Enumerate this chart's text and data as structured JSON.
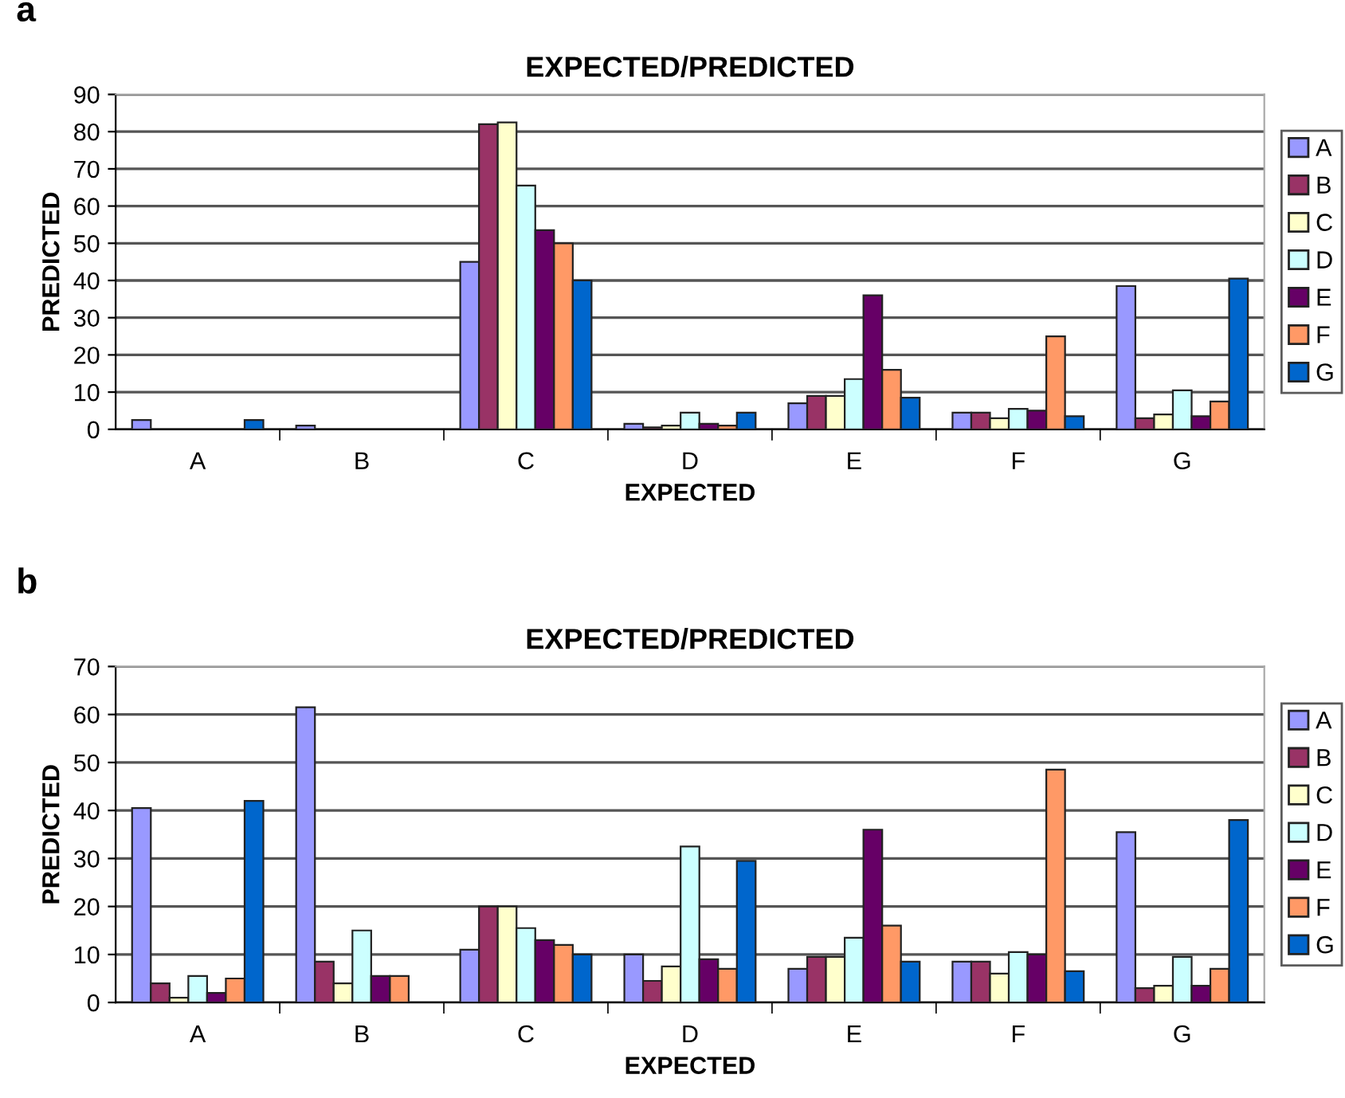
{
  "chart_data": [
    {
      "type": "bar",
      "title": "EXPECTED/PREDICTED",
      "xlabel": "EXPECTED",
      "ylabel": "PREDICTED",
      "annotations": [
        "a"
      ],
      "categories": [
        "A",
        "B",
        "C",
        "D",
        "E",
        "F",
        "G"
      ],
      "ylim": [
        0,
        90
      ],
      "yticks": [
        0,
        10,
        20,
        30,
        40,
        50,
        60,
        70,
        80,
        90
      ],
      "grid": "y",
      "legend": "right",
      "series": [
        {
          "name": "A",
          "color": "#9999ff",
          "values": [
            2.5,
            1,
            45,
            1.5,
            7,
            4.5,
            38.5
          ]
        },
        {
          "name": "B",
          "color": "#993366",
          "values": [
            null,
            null,
            82,
            0.5,
            9,
            4.5,
            3
          ]
        },
        {
          "name": "C",
          "color": "#ffffcc",
          "values": [
            null,
            null,
            82.5,
            1,
            9,
            3,
            4
          ]
        },
        {
          "name": "D",
          "color": "#ccffff",
          "values": [
            null,
            null,
            65.5,
            4.5,
            13.5,
            5.5,
            10.5
          ]
        },
        {
          "name": "E",
          "color": "#660066",
          "values": [
            null,
            null,
            53.5,
            1.5,
            36,
            5,
            3.5
          ]
        },
        {
          "name": "F",
          "color": "#ff9966",
          "values": [
            null,
            null,
            50,
            1,
            16,
            25,
            7.5
          ]
        },
        {
          "name": "G",
          "color": "#0066cc",
          "values": [
            2.5,
            null,
            40,
            4.5,
            8.5,
            3.5,
            40.5
          ]
        }
      ]
    },
    {
      "type": "bar",
      "title": "EXPECTED/PREDICTED",
      "xlabel": "EXPECTED",
      "ylabel": "PREDICTED",
      "annotations": [
        "b"
      ],
      "categories": [
        "A",
        "B",
        "C",
        "D",
        "E",
        "F",
        "G"
      ],
      "ylim": [
        0,
        70
      ],
      "yticks": [
        0,
        10,
        20,
        30,
        40,
        50,
        60,
        70
      ],
      "grid": "y",
      "legend": "right",
      "series": [
        {
          "name": "A",
          "color": "#9999ff",
          "values": [
            40.5,
            61.5,
            11,
            10,
            7,
            8.5,
            35.5
          ]
        },
        {
          "name": "B",
          "color": "#993366",
          "values": [
            4,
            8.5,
            20,
            4.5,
            9.5,
            8.5,
            3
          ]
        },
        {
          "name": "C",
          "color": "#ffffcc",
          "values": [
            1,
            4,
            20,
            7.5,
            9.5,
            6,
            3.5
          ]
        },
        {
          "name": "D",
          "color": "#ccffff",
          "values": [
            5.5,
            15,
            15.5,
            32.5,
            13.5,
            10.5,
            9.5
          ]
        },
        {
          "name": "E",
          "color": "#660066",
          "values": [
            2,
            5.5,
            13,
            9,
            36,
            10,
            3.5
          ]
        },
        {
          "name": "F",
          "color": "#ff9966",
          "values": [
            5,
            5.5,
            12,
            7,
            16,
            48.5,
            7
          ]
        },
        {
          "name": "G",
          "color": "#0066cc",
          "values": [
            42,
            null,
            10,
            29.5,
            8.5,
            6.5,
            38
          ]
        }
      ]
    }
  ]
}
